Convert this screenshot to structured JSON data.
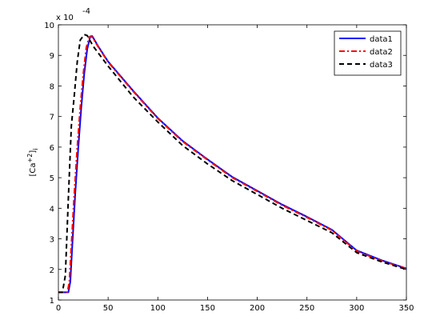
{
  "chart_data": {
    "type": "line",
    "title": "",
    "xlabel": "",
    "ylabel": "[Ca",
    "ylabel_sup": "+2",
    "ylabel_close": "]",
    "ylabel_sub": "i",
    "y_exponent_prefix": "x 10",
    "y_exponent_power": "-4",
    "xlim": [
      0,
      350
    ],
    "ylim": [
      1,
      10
    ],
    "xticks": [
      0,
      50,
      100,
      150,
      200,
      250,
      300,
      350
    ],
    "yticks": [
      1,
      2,
      3,
      4,
      5,
      6,
      7,
      8,
      9,
      10
    ],
    "legend_position": "top-right",
    "grid": false,
    "series": [
      {
        "name": "data1",
        "color": "#0000ff",
        "dash": "solid",
        "points": [
          [
            0,
            1.25
          ],
          [
            10,
            1.25
          ],
          [
            12,
            1.6
          ],
          [
            14,
            2.8
          ],
          [
            17,
            4.5
          ],
          [
            20,
            6.0
          ],
          [
            23,
            7.3
          ],
          [
            26,
            8.4
          ],
          [
            29,
            9.2
          ],
          [
            32,
            9.62
          ],
          [
            34,
            9.63
          ],
          [
            40,
            9.3
          ],
          [
            50,
            8.8
          ],
          [
            75,
            7.85
          ],
          [
            100,
            6.95
          ],
          [
            125,
            6.2
          ],
          [
            150,
            5.6
          ],
          [
            175,
            5.02
          ],
          [
            200,
            4.57
          ],
          [
            225,
            4.12
          ],
          [
            250,
            3.72
          ],
          [
            275,
            3.3
          ],
          [
            300,
            2.62
          ],
          [
            325,
            2.3
          ],
          [
            350,
            2.03
          ]
        ]
      },
      {
        "name": "data2",
        "color": "#ff0000",
        "dash": "dashdot",
        "points": [
          [
            0,
            1.25
          ],
          [
            9,
            1.25
          ],
          [
            11,
            1.6
          ],
          [
            13,
            2.8
          ],
          [
            16,
            4.5
          ],
          [
            19,
            6.0
          ],
          [
            22,
            7.3
          ],
          [
            25,
            8.4
          ],
          [
            28,
            9.25
          ],
          [
            31,
            9.6
          ],
          [
            34,
            9.6
          ],
          [
            40,
            9.28
          ],
          [
            50,
            8.78
          ],
          [
            75,
            7.83
          ],
          [
            100,
            6.93
          ],
          [
            125,
            6.18
          ],
          [
            150,
            5.58
          ],
          [
            175,
            5.0
          ],
          [
            200,
            4.55
          ],
          [
            225,
            4.1
          ],
          [
            250,
            3.7
          ],
          [
            275,
            3.28
          ],
          [
            300,
            2.6
          ],
          [
            325,
            2.28
          ],
          [
            350,
            2.03
          ]
        ]
      },
      {
        "name": "data3",
        "color": "#000000",
        "dash": "dashed",
        "points": [
          [
            0,
            1.25
          ],
          [
            4,
            1.25
          ],
          [
            7,
            1.8
          ],
          [
            10,
            4.3
          ],
          [
            13,
            6.7
          ],
          [
            16,
            7.7
          ],
          [
            19,
            8.8
          ],
          [
            22,
            9.5
          ],
          [
            26,
            9.68
          ],
          [
            29,
            9.65
          ],
          [
            35,
            9.3
          ],
          [
            50,
            8.65
          ],
          [
            75,
            7.65
          ],
          [
            100,
            6.82
          ],
          [
            125,
            6.05
          ],
          [
            150,
            5.45
          ],
          [
            175,
            4.9
          ],
          [
            200,
            4.45
          ],
          [
            225,
            4.0
          ],
          [
            250,
            3.6
          ],
          [
            275,
            3.2
          ],
          [
            300,
            2.55
          ],
          [
            325,
            2.25
          ],
          [
            350,
            2.0
          ]
        ]
      }
    ]
  }
}
